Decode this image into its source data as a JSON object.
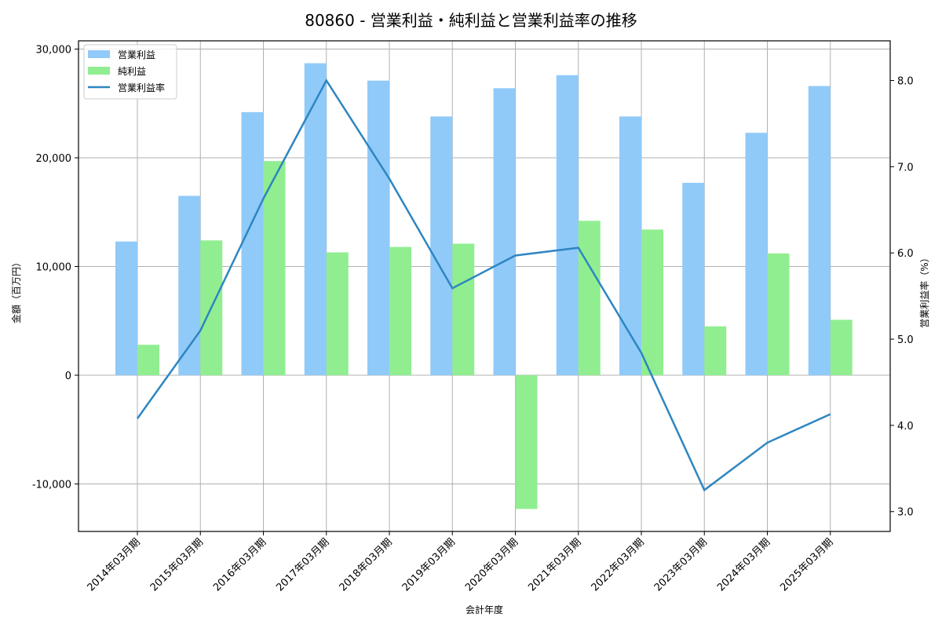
{
  "chart_data": {
    "type": "bar",
    "title": "80860 - 営業利益・純利益と営業利益率の推移",
    "xlabel": "会計年度",
    "ylabel": "金額（百万円）",
    "y2label": "営業利益率（%）",
    "categories": [
      "2014年03月期",
      "2015年03月期",
      "2016年03月期",
      "2017年03月期",
      "2018年03月期",
      "2019年03月期",
      "2020年03月期",
      "2021年03月期",
      "2022年03月期",
      "2023年03月期",
      "2024年03月期",
      "2025年03月期"
    ],
    "series": [
      {
        "name": "営業利益",
        "type": "bar",
        "axis": "left",
        "color": "#90CAF9",
        "values": [
          12300,
          16500,
          24200,
          28700,
          27100,
          23800,
          26400,
          27600,
          23800,
          17700,
          22300,
          26600
        ]
      },
      {
        "name": "純利益",
        "type": "bar",
        "axis": "left",
        "color": "#90EE90",
        "values": [
          2800,
          12400,
          19700,
          11300,
          11800,
          12100,
          -12300,
          14200,
          13400,
          4500,
          11200,
          5100
        ]
      },
      {
        "name": "営業利益率",
        "type": "line",
        "axis": "right",
        "color": "#2E86C1",
        "values": [
          4.08,
          5.1,
          6.63,
          8.0,
          6.86,
          5.59,
          5.97,
          6.06,
          4.84,
          3.25,
          3.8,
          4.13
        ]
      }
    ],
    "ylim": [
      -14370,
      30760
    ],
    "y2lim": [
      2.77,
      8.46
    ],
    "yticks": [
      -10000,
      0,
      10000,
      20000,
      30000
    ],
    "ytick_labels": [
      "-10,000",
      "0",
      "10,000",
      "20,000",
      "30,000"
    ],
    "y2ticks": [
      3.0,
      4.0,
      5.0,
      6.0,
      7.0,
      8.0
    ],
    "y2tick_labels": [
      "3.0",
      "4.0",
      "5.0",
      "6.0",
      "7.0",
      "8.0"
    ],
    "grid": true,
    "legend_position": "upper left"
  },
  "legend": {
    "items": [
      {
        "label": "営業利益",
        "kind": "patch",
        "color": "#90CAF9"
      },
      {
        "label": "純利益",
        "kind": "patch",
        "color": "#90EE90"
      },
      {
        "label": "営業利益率",
        "kind": "line",
        "color": "#2E86C1"
      }
    ]
  }
}
